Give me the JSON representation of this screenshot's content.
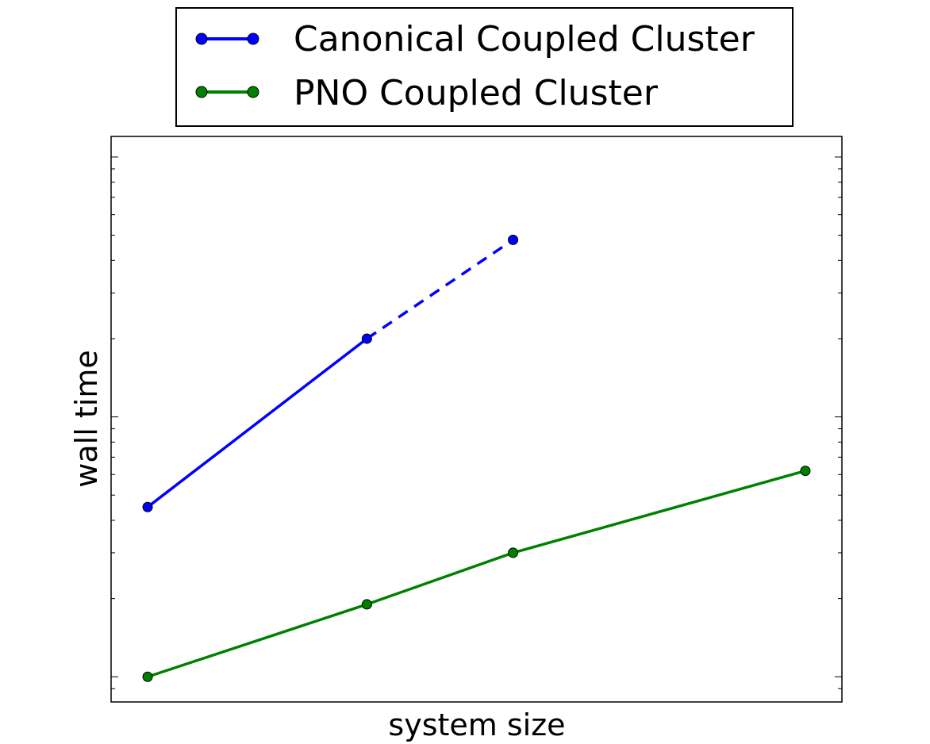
{
  "chart_data": {
    "type": "line",
    "xlabel": "system size",
    "ylabel": "wall time",
    "yscale": "log",
    "xticks_labeled": false,
    "yticks_labeled": false,
    "grid": false,
    "legend_placement": "top-center, outside plot",
    "xlim": [
      0.75,
      5.75
    ],
    "ylim": [
      0.8,
      120
    ],
    "series": [
      {
        "name": "Canonical Coupled Cluster",
        "color": "#0000ff",
        "marker": "circle",
        "x": [
          1,
          2.5,
          3.5
        ],
        "y": [
          4.5,
          20,
          48
        ],
        "segment_styles": [
          "solid",
          "dashed"
        ]
      },
      {
        "name": "PNO Coupled Cluster",
        "color": "#008000",
        "marker": "circle",
        "x": [
          1,
          2.5,
          3.5,
          5.5
        ],
        "y": [
          1.0,
          1.9,
          3.0,
          6.2
        ],
        "segment_styles": [
          "solid",
          "solid",
          "solid"
        ]
      }
    ]
  }
}
